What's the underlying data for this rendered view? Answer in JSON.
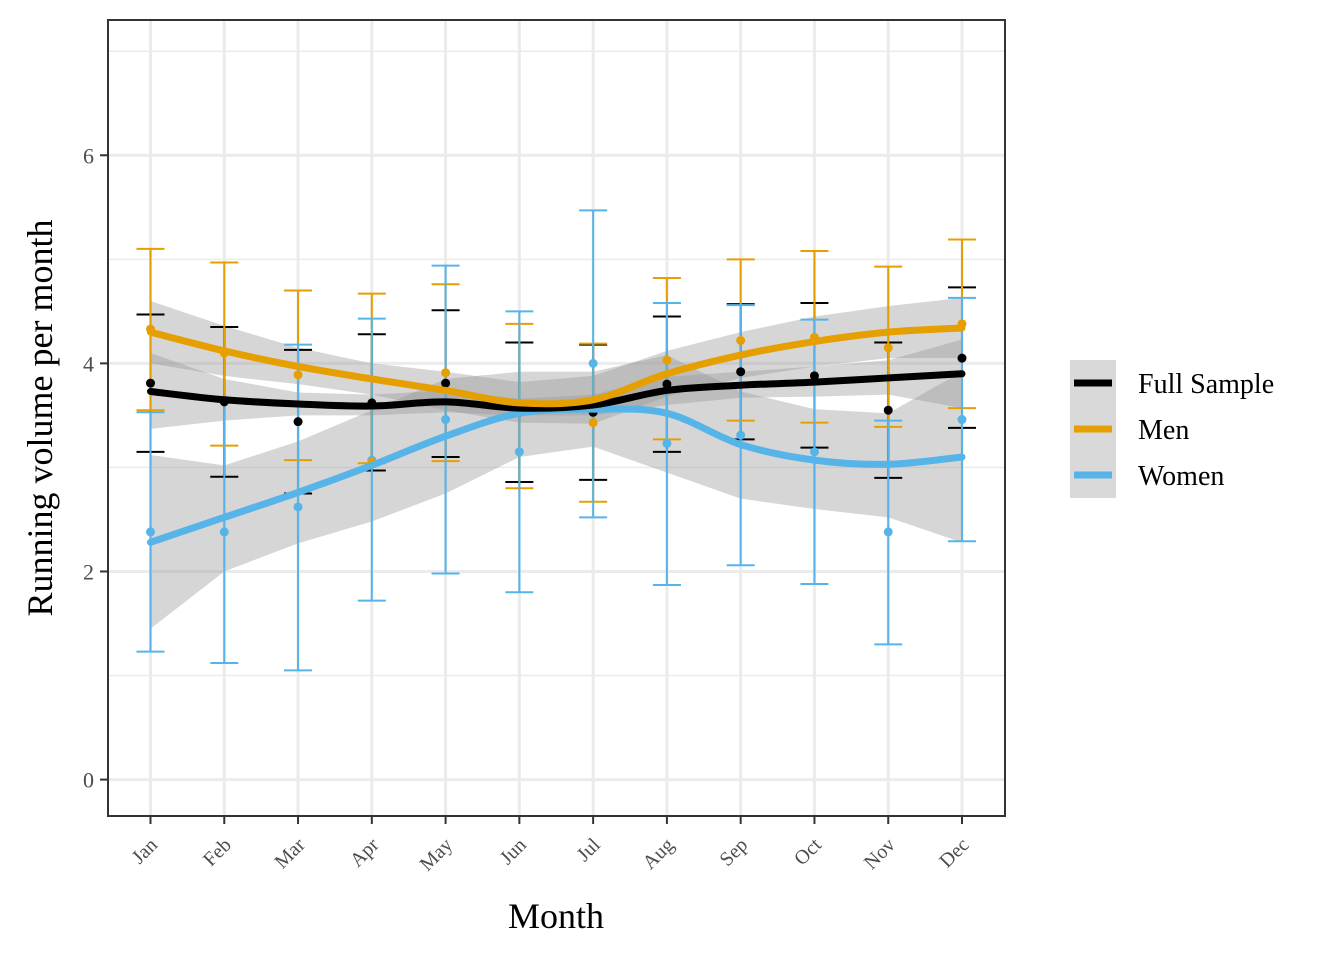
{
  "chart_data": {
    "type": "line",
    "xlabel": "Month",
    "ylabel": "Running volume per month",
    "categories": [
      "Jan",
      "Feb",
      "Mar",
      "Apr",
      "May",
      "Jun",
      "Jul",
      "Aug",
      "Sep",
      "Oct",
      "Nov",
      "Dec"
    ],
    "ylim": [
      -0.35,
      7.3
    ],
    "yticks": [
      0,
      2,
      4,
      6
    ],
    "grid": true,
    "legend_position": "right",
    "series": [
      {
        "name": "Women",
        "color": "#56B4E9",
        "means": [
          2.38,
          2.38,
          2.62,
          3.07,
          3.46,
          3.15,
          4.0,
          3.23,
          3.31,
          3.15,
          2.38,
          3.46
        ],
        "err_low": [
          1.23,
          1.12,
          1.05,
          1.72,
          1.98,
          1.8,
          2.52,
          1.87,
          2.06,
          1.88,
          1.3,
          2.29
        ],
        "err_high": [
          3.53,
          3.65,
          4.18,
          4.43,
          4.94,
          4.5,
          5.47,
          4.58,
          4.56,
          4.42,
          3.45,
          4.63
        ],
        "smooth": [
          2.28,
          2.52,
          2.76,
          3.02,
          3.3,
          3.52,
          3.56,
          3.52,
          3.22,
          3.07,
          3.03,
          3.1
        ],
        "band_low": [
          1.45,
          2.0,
          2.27,
          2.48,
          2.75,
          3.1,
          3.2,
          2.95,
          2.7,
          2.6,
          2.52,
          2.28
        ],
        "band_high": [
          3.12,
          3.02,
          3.25,
          3.55,
          3.85,
          3.92,
          3.92,
          4.08,
          3.73,
          3.56,
          3.52,
          3.92
        ]
      },
      {
        "name": "Full Sample",
        "color": "#000000",
        "means": [
          3.81,
          3.63,
          3.44,
          3.62,
          3.81,
          3.53,
          3.53,
          3.8,
          3.92,
          3.88,
          3.55,
          4.05
        ],
        "err_low": [
          3.15,
          2.91,
          2.75,
          2.97,
          3.1,
          2.86,
          2.88,
          3.15,
          3.27,
          3.19,
          2.9,
          3.38
        ],
        "err_high": [
          4.47,
          4.35,
          4.13,
          4.28,
          4.51,
          4.2,
          4.18,
          4.45,
          4.57,
          4.58,
          4.2,
          4.73
        ],
        "smooth": [
          3.73,
          3.65,
          3.61,
          3.59,
          3.63,
          3.57,
          3.6,
          3.74,
          3.79,
          3.82,
          3.86,
          3.9
        ],
        "band_low": [
          3.37,
          3.45,
          3.5,
          3.5,
          3.53,
          3.5,
          3.5,
          3.6,
          3.67,
          3.68,
          3.7,
          3.57
        ],
        "band_high": [
          4.1,
          3.85,
          3.72,
          3.7,
          3.74,
          3.66,
          3.7,
          3.87,
          3.92,
          3.97,
          4.03,
          4.23
        ]
      },
      {
        "name": "Men",
        "color": "#E69F00",
        "means": [
          4.33,
          4.1,
          3.89,
          3.05,
          3.91,
          3.6,
          3.43,
          4.03,
          4.22,
          4.25,
          4.15,
          4.38
        ],
        "err_low": [
          3.55,
          3.21,
          3.07,
          3.04,
          3.06,
          2.8,
          2.67,
          3.27,
          3.45,
          3.43,
          3.39,
          3.57
        ],
        "err_high": [
          5.1,
          4.97,
          4.7,
          4.67,
          4.76,
          4.38,
          4.19,
          4.82,
          5.0,
          5.08,
          4.93,
          5.19
        ],
        "smooth": [
          4.3,
          4.12,
          3.97,
          3.85,
          3.74,
          3.62,
          3.65,
          3.9,
          4.08,
          4.21,
          4.3,
          4.34
        ],
        "band_low": [
          4.0,
          3.88,
          3.8,
          3.7,
          3.55,
          3.43,
          3.42,
          3.68,
          3.86,
          3.97,
          4.05,
          4.05
        ],
        "band_high": [
          4.6,
          4.36,
          4.15,
          4.0,
          3.92,
          3.82,
          3.88,
          4.12,
          4.3,
          4.45,
          4.55,
          4.63
        ]
      }
    ],
    "legend_order": [
      "Full Sample",
      "Men",
      "Women"
    ]
  }
}
